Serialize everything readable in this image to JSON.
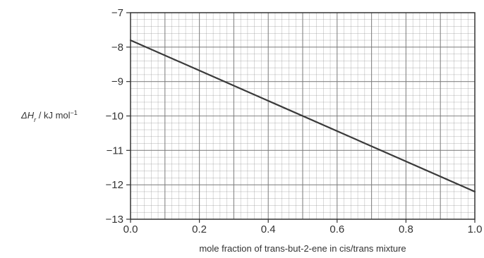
{
  "chart_data": {
    "type": "line",
    "xlabel": "mole fraction of trans-but-2-ene in cis/trans mixture",
    "ylabel": {
      "symbol": "ΔH",
      "subscript": "r",
      "units": " / kJ mol",
      "exponent": "−1"
    },
    "xlim": [
      0,
      1
    ],
    "ylim": [
      -13,
      -7
    ],
    "x_ticks": [
      0.0,
      0.2,
      0.4,
      0.6,
      0.8,
      1.0
    ],
    "x_tick_labels": [
      "0.0",
      "0.2",
      "0.4",
      "0.6",
      "0.8",
      "1.0"
    ],
    "y_ticks": [
      -7,
      -8,
      -9,
      -10,
      -11,
      -12,
      -13
    ],
    "y_tick_labels": [
      "−7",
      "−8",
      "−9",
      "−10",
      "−11",
      "−12",
      "−13"
    ],
    "grid": true,
    "series": [
      {
        "x": [
          0.0,
          1.0
        ],
        "y": [
          -7.8,
          -12.2
        ]
      }
    ],
    "colors": {
      "grid": "#7a7a7a",
      "line": "#3a3a3a"
    }
  }
}
